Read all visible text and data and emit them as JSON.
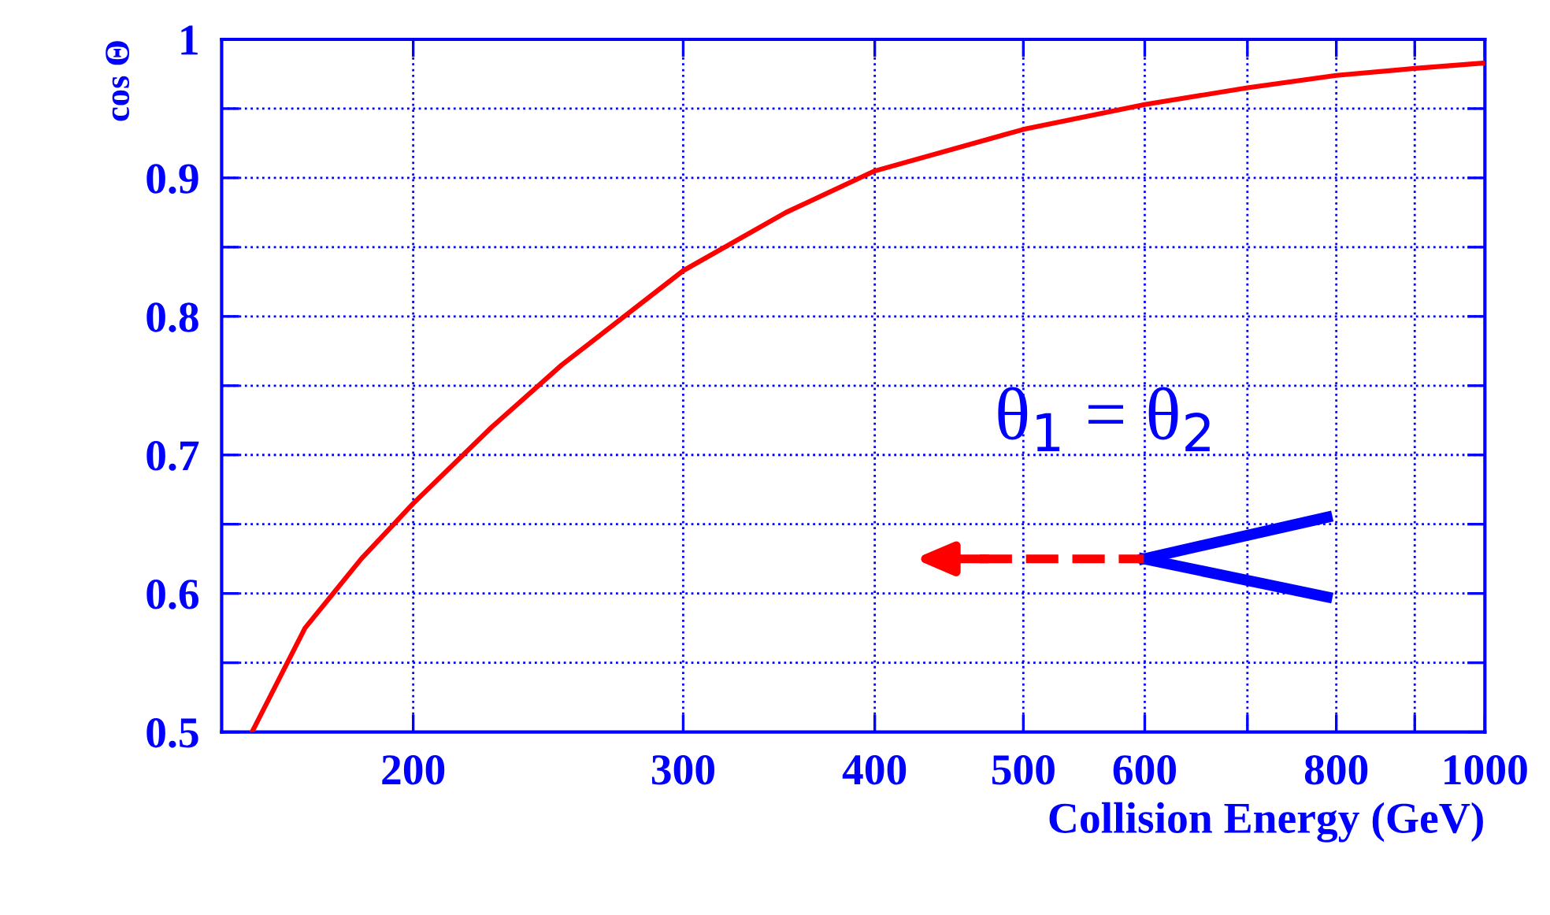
{
  "chart_data": {
    "type": "line",
    "xlabel": "Collision Energy (GeV)",
    "ylabel": "cos Θ",
    "log": "x",
    "x": [
      157,
      170,
      185,
      200,
      225,
      250,
      300,
      350,
      400,
      500,
      600,
      700,
      800,
      900,
      1000
    ],
    "series": [
      {
        "color": "#ff0000",
        "values": [
          0.5,
          0.575,
          0.625,
          0.665,
          0.72,
          0.765,
          0.833,
          0.875,
          0.905,
          0.935,
          0.953,
          0.965,
          0.974,
          0.979,
          0.983
        ]
      }
    ],
    "xlim": [
      150,
      1000
    ],
    "ylim": [
      0.5,
      1
    ],
    "xticks": [
      200,
      300,
      400,
      500,
      600,
      {
        "value": 700,
        "label": null
      },
      800,
      {
        "value": 900,
        "label": null
      },
      1000
    ],
    "yticks": [
      {
        "value": 0.5,
        "label": "0.5"
      },
      {
        "value": 0.55,
        "label": null
      },
      0.6,
      {
        "value": 0.65,
        "label": null
      },
      0.7,
      {
        "value": 0.75,
        "label": null
      },
      0.8,
      {
        "value": 0.85,
        "label": null
      },
      0.9,
      {
        "value": 0.95,
        "label": null
      },
      1
    ],
    "grid": true,
    "marker": "none",
    "line_style": "solid",
    "legend": false,
    "annotations": [
      "θ$_{1}$ = θ$_{2}$"
    ]
  }
}
